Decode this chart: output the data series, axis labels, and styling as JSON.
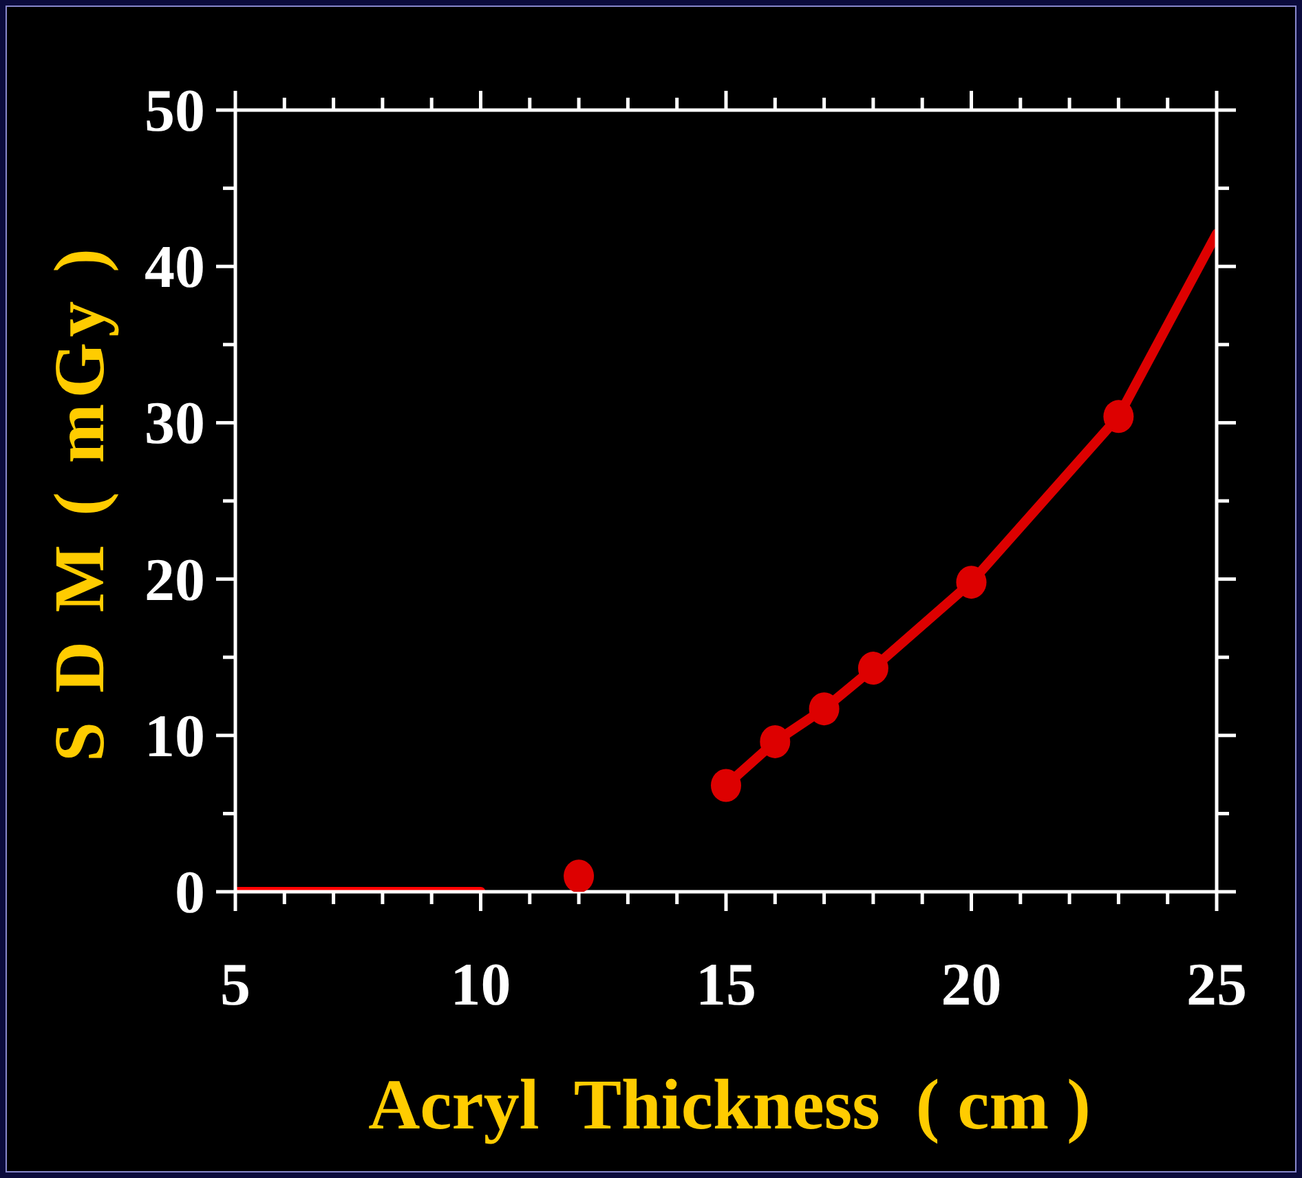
{
  "chart_data": {
    "type": "line",
    "xlabel": "Acryl  Thickness  ( cm )",
    "ylabel": "S D M ( mGy )",
    "xlim": [
      5,
      25
    ],
    "ylim": [
      0,
      50
    ],
    "xticks": [
      5,
      {
        "value": 6,
        "label": null
      },
      {
        "value": 7,
        "label": null
      },
      {
        "value": 8,
        "label": null
      },
      {
        "value": 9,
        "label": null
      },
      10,
      {
        "value": 11,
        "label": null
      },
      {
        "value": 12,
        "label": null
      },
      {
        "value": 13,
        "label": null
      },
      {
        "value": 14,
        "label": null
      },
      15,
      {
        "value": 16,
        "label": null
      },
      {
        "value": 17,
        "label": null
      },
      {
        "value": 18,
        "label": null
      },
      {
        "value": 19,
        "label": null
      },
      20,
      {
        "value": 21,
        "label": null
      },
      {
        "value": 22,
        "label": null
      },
      {
        "value": 23,
        "label": null
      },
      {
        "value": 24,
        "label": null
      },
      25
    ],
    "yticks": [
      0,
      {
        "value": 5,
        "label": null
      },
      10,
      {
        "value": 15,
        "label": null
      },
      20,
      {
        "value": 25,
        "label": null
      },
      30,
      {
        "value": 35,
        "label": null
      },
      40,
      {
        "value": 45,
        "label": null
      },
      50
    ],
    "series": [
      {
        "color": "#ff0000",
        "marker": "none",
        "x": [
          5,
          10
        ],
        "values": [
          0,
          0
        ]
      },
      {
        "color": "#dd0000",
        "marker": "none",
        "x": [
          15,
          16,
          17,
          18,
          20,
          23,
          25
        ],
        "values": [
          6.8,
          9.6,
          11.7,
          14.3,
          19.8,
          30.4,
          42.1
        ]
      },
      {
        "type": "scatter",
        "marker": "circle",
        "color": "#dd0000",
        "x": [
          12,
          15,
          16,
          17,
          18,
          20,
          23
        ],
        "values": [
          1.0,
          6.8,
          9.6,
          11.7,
          14.3,
          19.8,
          30.4
        ]
      }
    ]
  }
}
